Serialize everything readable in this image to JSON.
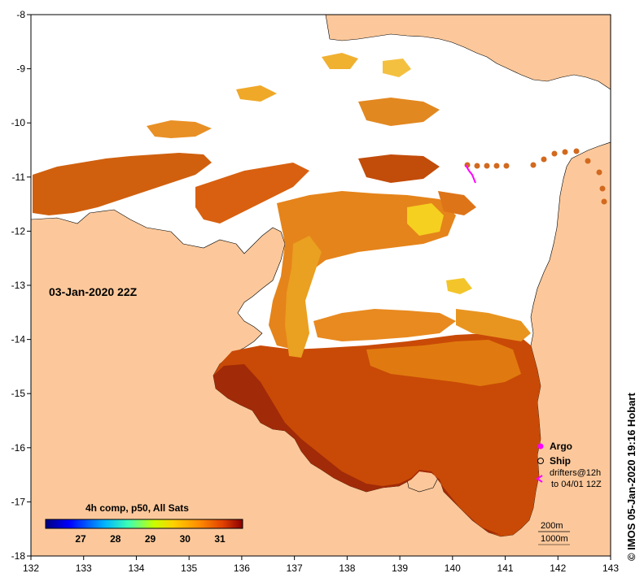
{
  "map": {
    "date_label": "03-Jan-2020 22Z",
    "credit": "© IMOS 05-Jan-2020 19:16 Hobart",
    "x_ticks": [
      "132",
      "133",
      "134",
      "135",
      "136",
      "137",
      "138",
      "139",
      "140",
      "141",
      "142",
      "143"
    ],
    "y_ticks": [
      "-8",
      "-9",
      "-10",
      "-11",
      "-12",
      "-13",
      "-14",
      "-15",
      "-16",
      "-17",
      "-18"
    ],
    "colorbar": {
      "title": "4h comp, p50, All Sats",
      "ticks": [
        "27",
        "28",
        "29",
        "30",
        "31"
      ]
    },
    "legend": {
      "argo": "Argo",
      "ship": "Ship",
      "drifters_line1": "drifters@12h",
      "drifters_line2": "to 04/01 12Z",
      "contour_200": "200m",
      "contour_1000": "1000m"
    },
    "colors": {
      "land": "#fcc89b",
      "nodata": "#ffffff",
      "argo": "#ff00ff",
      "ship_marker": "#d2691e"
    }
  }
}
